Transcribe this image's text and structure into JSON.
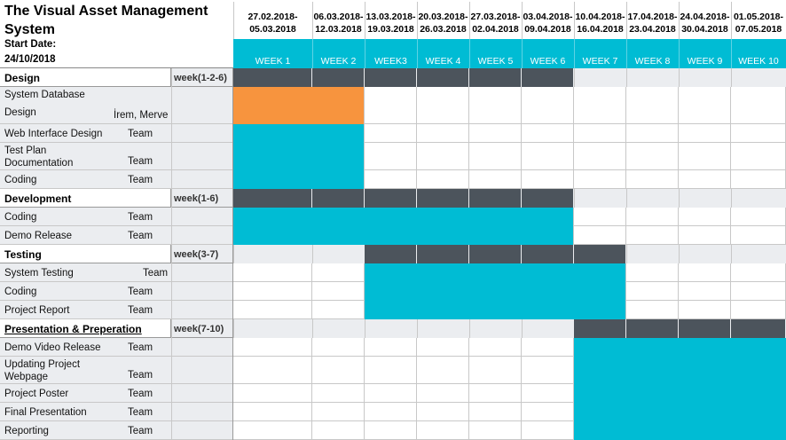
{
  "title": "The Visual Asset Management System",
  "start_date_label": "Start Date:",
  "start_date_value": "24/10/2018",
  "colors": {
    "teal": "#00bcd4",
    "dark": "#4c545c",
    "orange": "#f7943e",
    "light_gray": "#ebedf0",
    "white": "#ffffff"
  },
  "chart_data": {
    "type": "table",
    "weeks": [
      {
        "date_start": "27.02.2018-",
        "date_end": "05.03.2018",
        "label": "WEEK 1"
      },
      {
        "date_start": "06.03.2018-",
        "date_end": "12.03.2018",
        "label": "WEEK 2"
      },
      {
        "date_start": "13.03.2018-",
        "date_end": "19.03.2018",
        "label": "WEEK3"
      },
      {
        "date_start": "20.03.2018-",
        "date_end": "26.03.2018",
        "label": "WEEK 4"
      },
      {
        "date_start": "27.03.2018-",
        "date_end": "02.04.2018",
        "label": "WEEK 5"
      },
      {
        "date_start": "03.04.2018-",
        "date_end": "09.04.2018",
        "label": "WEEK 6"
      },
      {
        "date_start": "10.04.2018-",
        "date_end": "16.04.2018",
        "label": "WEEK 7"
      },
      {
        "date_start": "17.04.2018-",
        "date_end": "23.04.2018",
        "label": "WEEK 8"
      },
      {
        "date_start": "24.04.2018-",
        "date_end": "30.04.2018",
        "label": "WEEK 9"
      },
      {
        "date_start": "01.05.2018-",
        "date_end": "07.05.2018",
        "label": "WEEK 10"
      }
    ],
    "sections": [
      {
        "name": "Design",
        "week_range": "week(1-2-6)",
        "underline": false,
        "bar": {
          "start_week": 1,
          "end_week": 6
        },
        "tasks": [
          {
            "label_lines": [
              "System Database",
              "Design"
            ],
            "assignee": "İrem, Merve",
            "bar": {
              "start_week": 1,
              "end_week": 2,
              "color": "orange"
            }
          },
          {
            "label_lines": [
              "Web Interface Design"
            ],
            "assignee": "Team",
            "bar": {
              "start_week": 1,
              "end_week": 2,
              "color": "teal"
            }
          },
          {
            "label_lines": [
              "Test Plan",
              "Documentation"
            ],
            "assignee": "Team",
            "bar": {
              "start_week": 1,
              "end_week": 2,
              "color": "teal"
            }
          },
          {
            "label_lines": [
              "Coding"
            ],
            "assignee": "Team",
            "bar": {
              "start_week": 1,
              "end_week": 2,
              "color": "teal"
            }
          }
        ]
      },
      {
        "name": "Development",
        "week_range": "week(1-6)",
        "underline": false,
        "bar": {
          "start_week": 1,
          "end_week": 6
        },
        "tasks": [
          {
            "label_lines": [
              "Coding"
            ],
            "assignee": "Team",
            "bar": {
              "start_week": 1,
              "end_week": 6,
              "color": "teal"
            }
          },
          {
            "label_lines": [
              "Demo Release"
            ],
            "assignee": "Team",
            "bar": {
              "start_week": 1,
              "end_week": 6,
              "color": "teal"
            }
          }
        ]
      },
      {
        "name": "Testing",
        "week_range": "week(3-7)",
        "underline": false,
        "bar": {
          "start_week": 3,
          "end_week": 7
        },
        "tasks": [
          {
            "label_lines": [
              "System Testing"
            ],
            "assignee": "Team",
            "bar": {
              "start_week": 3,
              "end_week": 7,
              "color": "teal"
            }
          },
          {
            "label_lines": [
              "Coding"
            ],
            "assignee": "Team",
            "bar": {
              "start_week": 3,
              "end_week": 7,
              "color": "teal"
            }
          },
          {
            "label_lines": [
              "Project Report"
            ],
            "assignee": "Team",
            "bar": {
              "start_week": 3,
              "end_week": 7,
              "color": "teal"
            }
          }
        ]
      },
      {
        "name": "Presentation & Preperation",
        "week_range": "week(7-10)",
        "underline": true,
        "bar": {
          "start_week": 7,
          "end_week": 10
        },
        "tasks": [
          {
            "label_lines": [
              "Demo Video Release"
            ],
            "assignee": "Team",
            "bar": {
              "start_week": 7,
              "end_week": 10,
              "color": "teal"
            }
          },
          {
            "label_lines": [
              "Updating Project",
              "Webpage"
            ],
            "assignee": "Team",
            "bar": {
              "start_week": 7,
              "end_week": 10,
              "color": "teal"
            }
          },
          {
            "label_lines": [
              "Project Poster"
            ],
            "assignee": "Team",
            "bar": {
              "start_week": 7,
              "end_week": 10,
              "color": "teal"
            }
          },
          {
            "label_lines": [
              "Final Presentation"
            ],
            "assignee": "Team",
            "bar": {
              "start_week": 7,
              "end_week": 10,
              "color": "teal"
            }
          },
          {
            "label_lines": [
              "Reporting"
            ],
            "assignee": "Team",
            "bar": {
              "start_week": 7,
              "end_week": 10,
              "color": "teal"
            }
          }
        ]
      }
    ]
  }
}
